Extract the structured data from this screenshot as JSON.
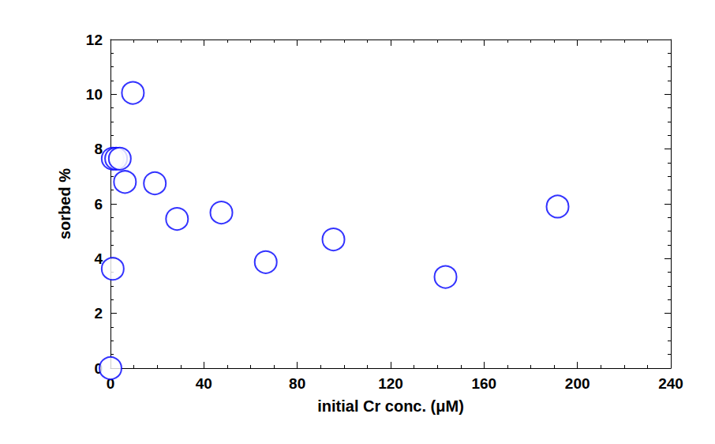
{
  "chart_data": {
    "type": "scatter",
    "x_label": "initial Cr conc. (μM)",
    "y_label": "sorbed %",
    "x": [
      0,
      0.96,
      0.96,
      2.4,
      4,
      6.2,
      9.6,
      19,
      28.5,
      47.5,
      66.5,
      95.5,
      143.5,
      191.5
    ],
    "values": [
      0,
      3.63,
      7.65,
      7.65,
      7.65,
      6.8,
      10.05,
      6.75,
      5.45,
      5.68,
      3.87,
      4.7,
      3.33,
      5.9
    ],
    "color": "#0000ff",
    "marker": "open_circle",
    "xlim": [
      0,
      240
    ],
    "xticks": [
      0,
      40,
      80,
      120,
      160,
      200,
      240
    ],
    "ylim": [
      0,
      12
    ],
    "yticks": [
      0,
      2,
      4,
      6,
      8,
      10,
      12
    ],
    "grid": false
  }
}
